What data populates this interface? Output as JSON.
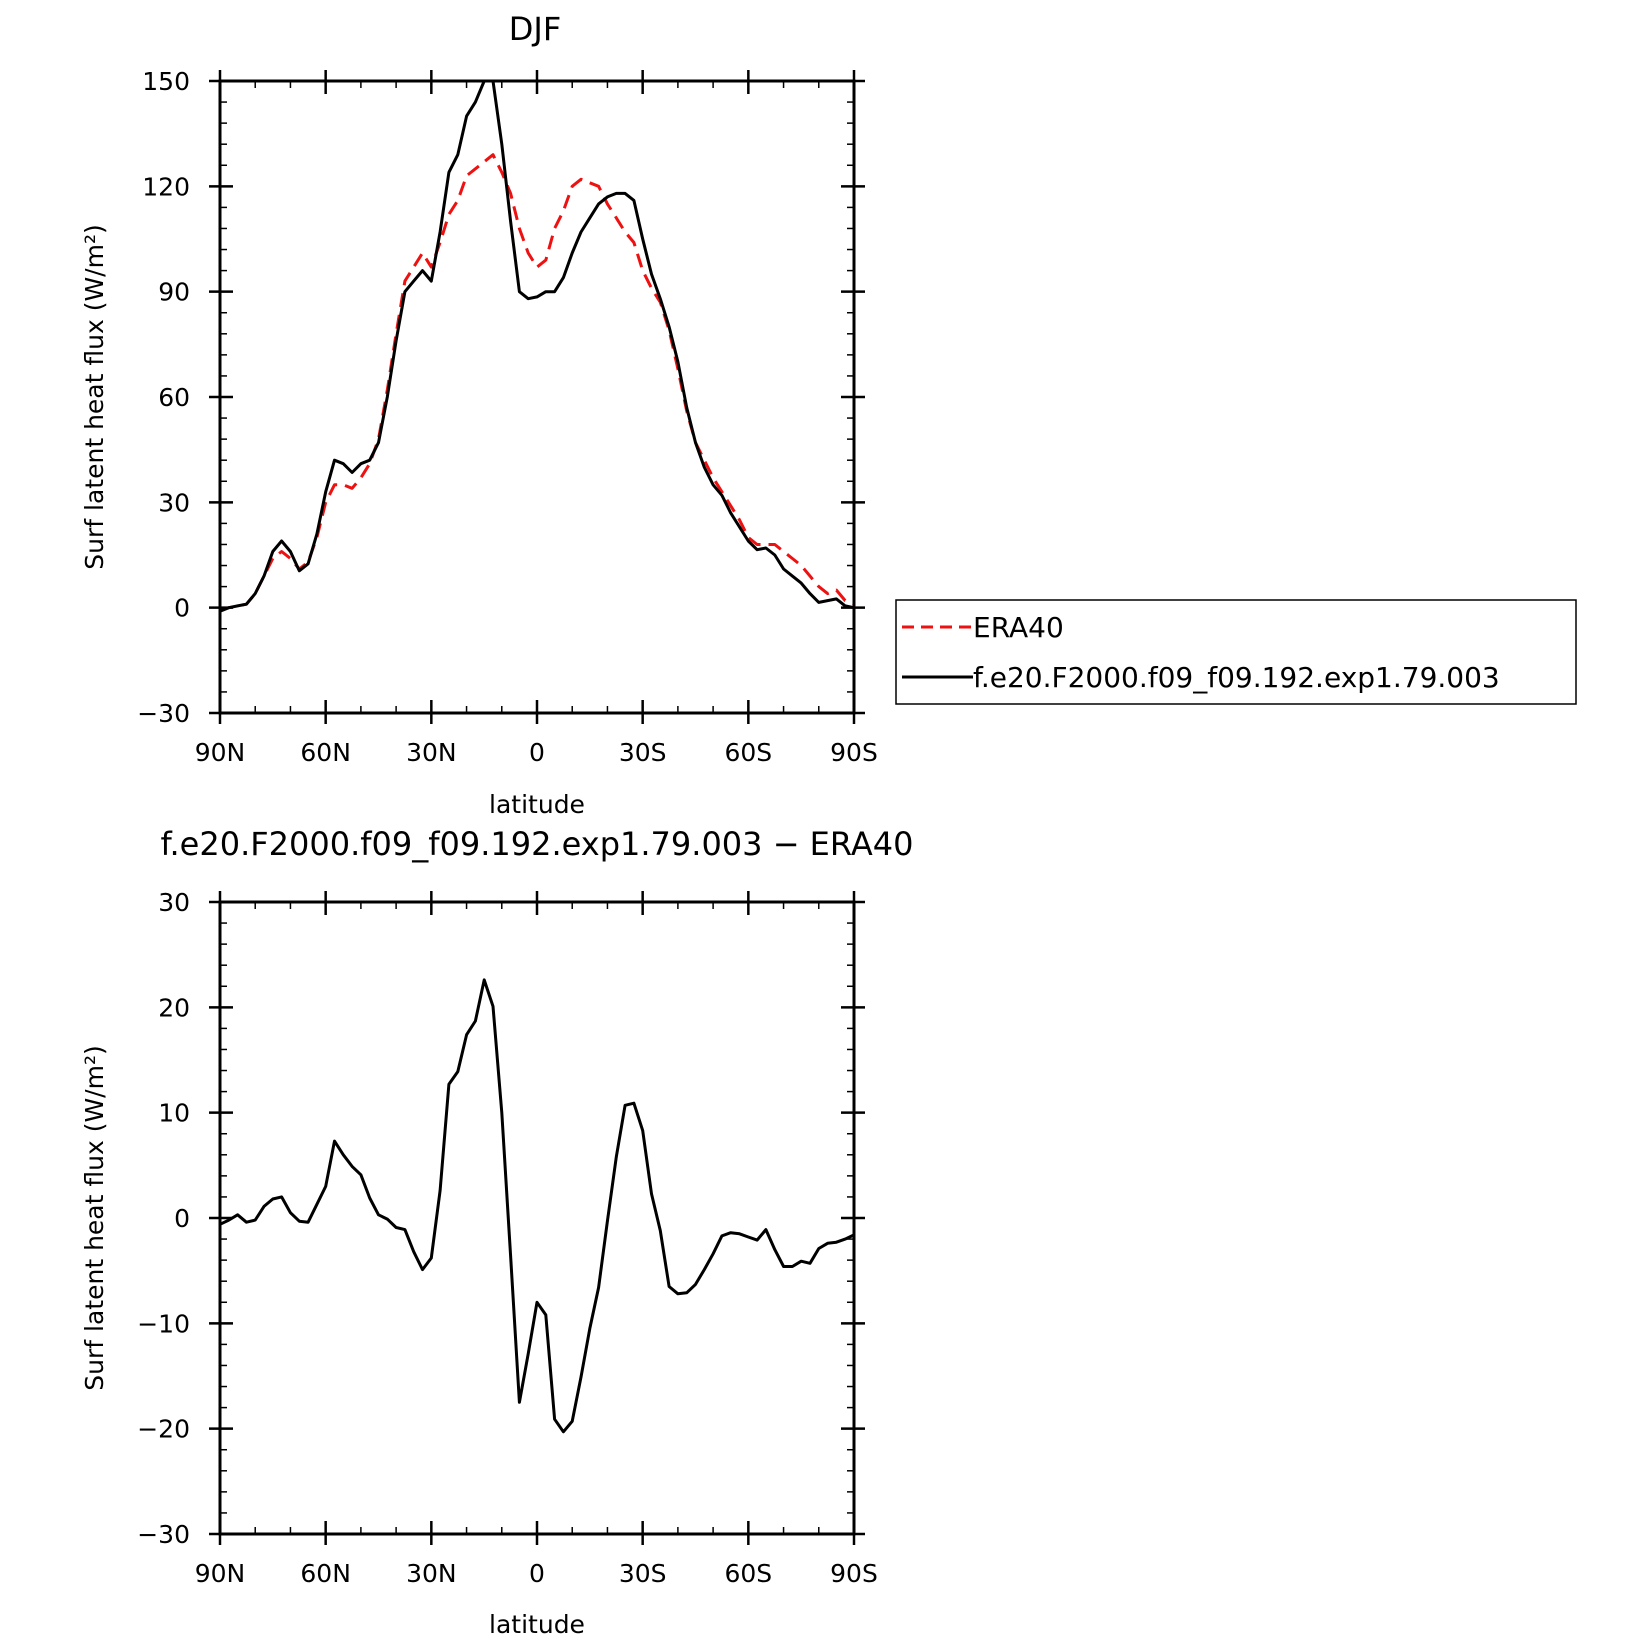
{
  "chart_data": [
    {
      "type": "line",
      "title": "DJF",
      "xlabel": "latitude",
      "ylabel": "Surf latent heat flux (W/m²)",
      "xlim": [
        -90,
        90
      ],
      "ylim": [
        -30,
        150
      ],
      "xticks": [
        -90,
        -60,
        -30,
        0,
        30,
        60,
        90
      ],
      "xtick_labels": [
        "90N",
        "60N",
        "30N",
        "0",
        "30S",
        "60S",
        "90S"
      ],
      "yticks": [
        -30,
        0,
        30,
        60,
        90,
        120,
        150
      ],
      "ytick_labels": [
        "−30",
        "0",
        "30",
        "60",
        "90",
        "120",
        "150"
      ],
      "legend_position": "right",
      "series": [
        {
          "name": "ERA40",
          "color": "#ee1111",
          "dash": "dashed",
          "x": [
            -90,
            -87.5,
            -85,
            -82.5,
            -80,
            -77.5,
            -75,
            -72.5,
            -70,
            -67.5,
            -65,
            -62.5,
            -60,
            -57.5,
            -55,
            -52.5,
            -50,
            -47.5,
            -45,
            -42.5,
            -40,
            -37.5,
            -35,
            -32.5,
            -30,
            -27.5,
            -25,
            -22.5,
            -20,
            -17.5,
            -15,
            -12.5,
            -10,
            -7.5,
            -5,
            -2.5,
            0,
            2.5,
            5,
            7.5,
            10,
            12.5,
            15,
            17.5,
            20,
            22.5,
            25,
            27.5,
            30,
            32.5,
            35,
            37.5,
            40,
            42.5,
            45,
            47.5,
            50,
            52.5,
            55,
            57.5,
            60,
            62.5,
            65,
            67.5,
            70,
            72.5,
            75,
            77.5,
            80,
            82.5,
            85,
            87.5,
            90
          ],
          "y": [
            -0.5,
            0,
            0.5,
            1,
            4,
            9,
            14,
            16,
            14,
            11,
            13,
            20,
            30,
            35,
            35,
            34,
            37,
            41,
            48,
            62,
            78,
            93,
            97,
            101,
            97,
            104,
            112,
            116,
            123,
            125,
            127,
            129,
            124,
            118,
            108,
            101,
            97,
            99,
            108,
            113,
            120,
            122,
            121,
            120,
            115,
            111,
            107,
            104,
            96,
            91,
            87,
            79,
            68,
            56,
            47,
            42,
            37,
            33,
            29,
            25,
            20,
            18,
            18,
            18,
            16,
            14,
            12,
            9,
            6,
            4,
            5,
            2,
            1
          ]
        },
        {
          "name": "f.e20.F2000.f09_f09.192.exp1.79.003",
          "color": "#000000",
          "dash": "solid",
          "x": [
            -90,
            -87.5,
            -85,
            -82.5,
            -80,
            -77.5,
            -75,
            -72.5,
            -70,
            -67.5,
            -65,
            -62.5,
            -60,
            -57.5,
            -55,
            -52.5,
            -50,
            -47.5,
            -45,
            -42.5,
            -40,
            -37.5,
            -35,
            -32.5,
            -30,
            -27.5,
            -25,
            -22.5,
            -20,
            -17.5,
            -15,
            -12.5,
            -10,
            -7.5,
            -5,
            -2.5,
            0,
            2.5,
            5,
            7.5,
            10,
            12.5,
            15,
            17.5,
            20,
            22.5,
            25,
            27.5,
            30,
            32.5,
            35,
            37.5,
            40,
            42.5,
            45,
            47.5,
            50,
            52.5,
            55,
            57.5,
            60,
            62.5,
            65,
            67.5,
            70,
            72.5,
            75,
            77.5,
            80,
            82.5,
            85,
            87.5,
            90
          ],
          "y": [
            -1,
            0,
            0.5,
            1,
            4,
            9,
            16,
            19,
            16,
            10.5,
            12.5,
            21,
            33,
            42,
            41,
            38.5,
            41,
            42,
            47,
            60,
            76,
            90,
            93,
            96,
            93,
            107,
            124,
            129,
            140,
            144,
            150,
            150,
            132,
            110,
            90,
            88,
            88.5,
            90,
            90,
            94,
            101,
            107,
            111,
            115,
            117,
            118,
            118,
            116,
            105,
            95,
            88,
            80,
            70,
            57,
            47,
            40,
            35,
            32,
            27,
            23,
            19,
            16.5,
            17,
            15,
            11,
            9,
            7,
            4,
            1.5,
            2,
            2.5,
            0.5,
            0
          ]
        }
      ]
    },
    {
      "type": "line",
      "title": "f.e20.F2000.f09_f09.192.exp1.79.003 − ERA40",
      "xlabel": "latitude",
      "ylabel": "Surf latent heat flux (W/m²)",
      "xlim": [
        -90,
        90
      ],
      "ylim": [
        -30,
        30
      ],
      "xticks": [
        -90,
        -60,
        -30,
        0,
        30,
        60,
        90
      ],
      "xtick_labels": [
        "90N",
        "60N",
        "30N",
        "0",
        "30S",
        "60S",
        "90S"
      ],
      "yticks": [
        -30,
        -20,
        -10,
        0,
        10,
        20,
        30
      ],
      "ytick_labels": [
        "−30",
        "−20",
        "−10",
        "0",
        "10",
        "20",
        "30"
      ],
      "series": [
        {
          "color": "#000000",
          "dash": "solid",
          "x": [
            -90,
            -87.5,
            -85,
            -82.5,
            -80,
            -77.5,
            -75,
            -72.5,
            -70,
            -67.5,
            -65,
            -62.5,
            -60,
            -57.5,
            -55,
            -52.5,
            -50,
            -47.5,
            -45,
            -42.5,
            -40,
            -37.5,
            -35,
            -32.5,
            -30,
            -27.5,
            -25,
            -22.5,
            -20,
            -17.5,
            -15,
            -12.5,
            -10,
            -7.5,
            -5,
            -2.5,
            0,
            2.5,
            5,
            7.5,
            10,
            12.5,
            15,
            17.5,
            20,
            22.5,
            25,
            27.5,
            30,
            32.5,
            35,
            37.5,
            40,
            42.5,
            45,
            47.5,
            50,
            52.5,
            55,
            57.5,
            60,
            62.5,
            65,
            67.5,
            70,
            72.5,
            75,
            77.5,
            80,
            82.5,
            85,
            87.5,
            90
          ],
          "y": [
            -0.6,
            -0.2,
            0.3,
            -0.4,
            -0.2,
            1.1,
            1.8,
            2,
            0.5,
            -0.3,
            -0.4,
            1.3,
            3,
            7.3,
            6,
            4.9,
            4.1,
            1.9,
            0.3,
            -0.1,
            -0.9,
            -1.1,
            -3.2,
            -4.9,
            -3.8,
            2.6,
            12.7,
            13.9,
            17.4,
            18.7,
            22.6,
            20.1,
            10,
            -3.6,
            -17.5,
            -12.9,
            -8,
            -9.2,
            -19.1,
            -20.3,
            -19.3,
            -15.1,
            -10.5,
            -6.6,
            -0.3,
            5.8,
            10.7,
            10.9,
            8.3,
            2.3,
            -1.2,
            -6.5,
            -7.2,
            -7.1,
            -6.3,
            -4.9,
            -3.4,
            -1.7,
            -1.4,
            -1.5,
            -1.8,
            -2.1,
            -1.1,
            -3,
            -4.6,
            -4.6,
            -4.1,
            -4.3,
            -2.9,
            -2.4,
            -2.3,
            -2,
            -1.6
          ]
        }
      ]
    }
  ]
}
